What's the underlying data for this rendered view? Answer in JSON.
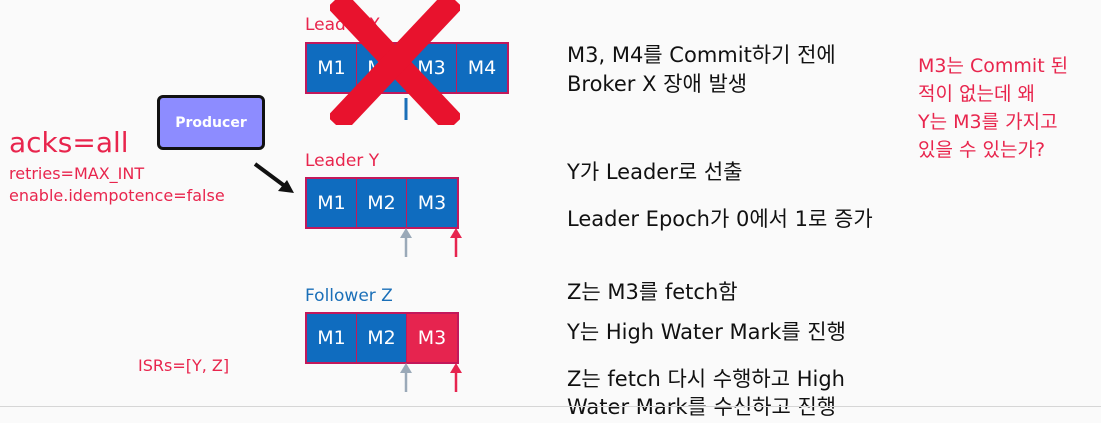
{
  "producer": {
    "label": "Producer"
  },
  "config": {
    "acks": "acks=all",
    "retries": "retries=MAX_INT",
    "idempotence": "enable.idempotence=false",
    "isrs": "ISRs=[Y, Z]"
  },
  "leader_x": {
    "label": "Leader X",
    "cells": [
      "M1",
      "M2",
      "M3",
      "M4"
    ]
  },
  "leader_y": {
    "label": "Leader Y",
    "cells": [
      "M1",
      "M2",
      "M3"
    ]
  },
  "follower_z": {
    "label": "Follower Z",
    "cells": [
      "M1",
      "M2",
      "M3"
    ]
  },
  "notes": {
    "x_fail_1": "M3, M4를 Commit하기 전에",
    "x_fail_2": "Broker X 장애 발생",
    "y_elected": "Y가 Leader로 선출",
    "epoch": "Leader Epoch가 0에서 1로 증가",
    "z_fetch": "Z는 M3를 fetch함",
    "y_hwm": "Y는 High Water Mark를 진행",
    "z_refetch_1": "Z는 fetch 다시 수행하고 High",
    "z_refetch_2": "Water Mark를 수신하고 진행"
  },
  "question": {
    "line1": "M3는 Commit 된",
    "line2": "적이 없는데 왜",
    "line3": "Y는 M3를 가지고",
    "line4": "있을 수 있는가?"
  },
  "colors": {
    "accent_red": "#e8254d",
    "cell_blue": "#0f6cbf",
    "producer": "#8d8cff"
  }
}
